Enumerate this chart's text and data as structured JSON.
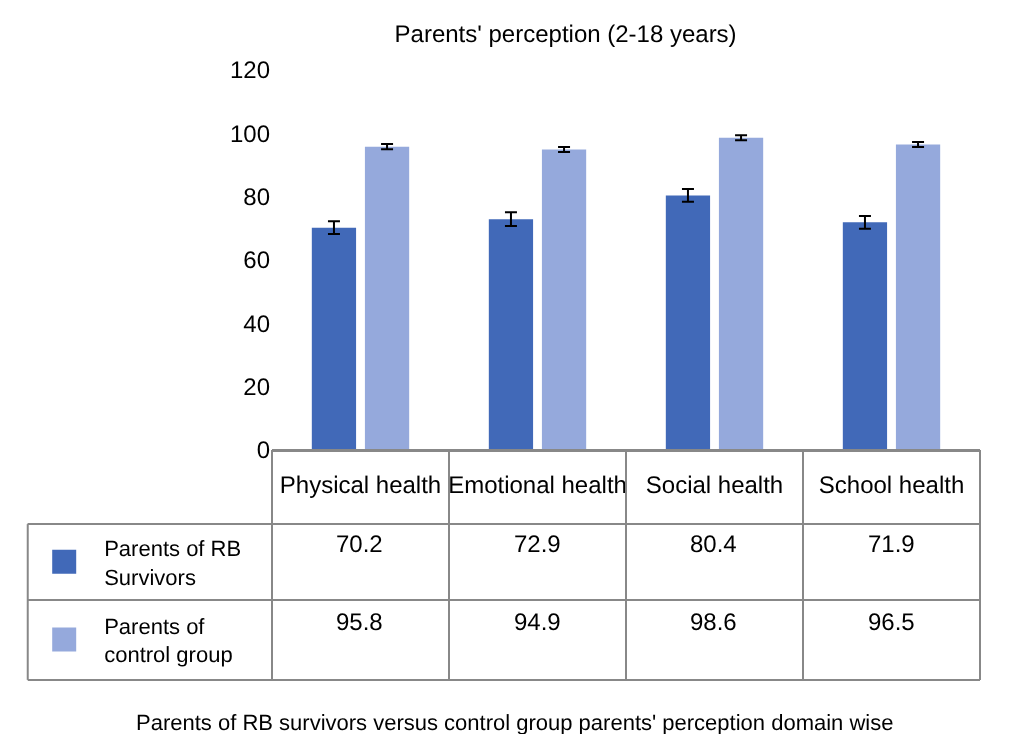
{
  "chart_data": {
    "type": "bar",
    "title": "Parents' perception (2-18 years)",
    "categories": [
      "Physical health",
      "Emotional health",
      "Social health",
      "School health"
    ],
    "series": [
      {
        "name": "Parents of RB Survivors",
        "color": "#4169b8",
        "values": [
          70.2,
          72.9,
          80.4,
          71.9
        ],
        "errors": [
          2,
          2.2,
          2,
          2
        ]
      },
      {
        "name": "Parents of control group",
        "color": "#95a9dc",
        "values": [
          95.8,
          94.9,
          98.6,
          96.5
        ],
        "errors": [
          0.8,
          0.8,
          0.8,
          0.8
        ]
      }
    ],
    "ylim": [
      0,
      120
    ],
    "yticks": [
      0,
      20,
      40,
      60,
      80,
      100,
      120
    ],
    "grid": false,
    "legend": "bottom left",
    "data_labels": true,
    "annotations": [
      "Parents of RB survivors versus control group parents' perception domain wise"
    ]
  }
}
